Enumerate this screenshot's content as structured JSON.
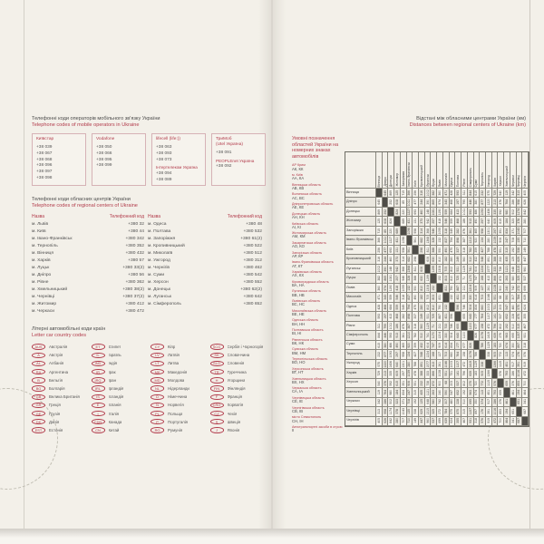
{
  "accent": "#b23b4b",
  "paper": "#f3f0e9",
  "left_page": {
    "mobile_section": {
      "title_uk": "Телефонні коди операторів мобільного зв'язку України",
      "title_en": "Telephone codes of mobile operators in Ukraine",
      "operators": [
        {
          "name": "Київстар",
          "lines": [
            "+38 039",
            "+38 067",
            "+38 068",
            "+38 096",
            "+38 097",
            "+38 098"
          ]
        },
        {
          "name": "Vodafone",
          "lines": [
            "+38 050",
            "+38 066",
            "+38 095",
            "+38 099"
          ]
        },
        {
          "name": "lifecell (life:))",
          "lines": [
            "+38 063",
            "+38 093",
            "+38 073",
            "Інтертелеком Україна",
            "+38 094",
            "+38 089"
          ]
        },
        {
          "name": "ТриМоб\n(Utel Україна)",
          "lines": [
            "+38 091",
            "PEOPLEnet Україна",
            "+38 092"
          ]
        }
      ]
    },
    "regional_section": {
      "title_uk": "Телефонні коди обласних центрів України",
      "title_en": "Telephone codes of regional centers of Ukraine",
      "headers": [
        "Назва",
        "Телефонний код",
        "Назва",
        "Телефонний код"
      ],
      "left": [
        [
          "м. Львів",
          "+380 32"
        ],
        [
          "м. Київ",
          "+380 44"
        ],
        [
          "м. Івано-Франківськ",
          "+380 342"
        ],
        [
          "м. Тернопіль",
          "+380 352"
        ],
        [
          "м. Вінниця",
          "+380 432"
        ],
        [
          "м. Харків",
          "+380 57"
        ],
        [
          "м. Луцьк",
          "+380 33(2)"
        ],
        [
          "м. Дніпро",
          "+380 56"
        ],
        [
          "м. Рівне",
          "+380 362"
        ],
        [
          "м. Хмельницький",
          "+380 38(2)"
        ],
        [
          "м. Чернівці",
          "+380 37(2)"
        ],
        [
          "м. Житомир",
          "+380 412"
        ],
        [
          "м. Черкаси",
          "+380 472"
        ]
      ],
      "right": [
        [
          "м. Одеса",
          "+380 48"
        ],
        [
          "м. Полтава",
          "+380 532"
        ],
        [
          "м. Запоріжжя",
          "+380 61(2)"
        ],
        [
          "м. Кропивницький",
          "+380 522"
        ],
        [
          "м. Миколаїв",
          "+380 512"
        ],
        [
          "м. Ужгород",
          "+380 312"
        ],
        [
          "м. Чернігів",
          "+380 462"
        ],
        [
          "м. Суми",
          "+380 542"
        ],
        [
          "м. Херсон",
          "+380 552"
        ],
        [
          "м. Донецьк",
          "+380 62(2)"
        ],
        [
          "м. Луганськ",
          "+380 642"
        ],
        [
          "м. Сімферополь",
          "+380 652"
        ]
      ]
    },
    "country_section": {
      "title_uk": "Літерні автомобільні коди країн",
      "title_en": "Letter car country codes",
      "columns": [
        [
          [
            "AUS",
            "Австралія"
          ],
          [
            "A",
            "Австрія"
          ],
          [
            "AL",
            "Албанія"
          ],
          [
            "RA",
            "Аргентина"
          ],
          [
            "B",
            "Бельгія"
          ],
          [
            "BG",
            "Болгарія"
          ],
          [
            "GB",
            "Велика Британія"
          ],
          [
            "GR",
            "Греція"
          ],
          [
            "GE",
            "Грузія"
          ],
          [
            "DK",
            "Данія"
          ],
          [
            "EST",
            "Естонія"
          ]
        ],
        [
          [
            "ET",
            "Єгипет"
          ],
          [
            "IL",
            "Ізраїль"
          ],
          [
            "IND",
            "Індія"
          ],
          [
            "IR",
            "Ірак"
          ],
          [
            "IRQ",
            "Іран"
          ],
          [
            "IRL",
            "Ірландія"
          ],
          [
            "IS",
            "Ісландія"
          ],
          [
            "E",
            "Іспанія"
          ],
          [
            "I",
            "Італія"
          ],
          [
            "CDN",
            "Канада"
          ],
          [
            "CN",
            "Китай"
          ]
        ],
        [
          [
            "CY",
            "Кіпр"
          ],
          [
            "LV",
            "Латвія"
          ],
          [
            "LT",
            "Литва"
          ],
          [
            "MK",
            "Македонія"
          ],
          [
            "MD",
            "Молдова"
          ],
          [
            "NL",
            "Нідерланди"
          ],
          [
            "D",
            "Німеччина"
          ],
          [
            "N",
            "Норвегія"
          ],
          [
            "PL",
            "Польща"
          ],
          [
            "P",
            "Португалія"
          ],
          [
            "RO",
            "Румунія"
          ]
        ],
        [
          [
            "SCG",
            "Сербія і Чорногорія"
          ],
          [
            "SK",
            "Словаччина"
          ],
          [
            "SLO",
            "Словенія"
          ],
          [
            "TR",
            "Туреччина"
          ],
          [
            "H",
            "Угорщина"
          ],
          [
            "FIN",
            "Фінляндія"
          ],
          [
            "F",
            "Франція"
          ],
          [
            "CRO",
            "Хорватія"
          ],
          [
            "CZ",
            "Чехія"
          ],
          [
            "S",
            "Швеція"
          ],
          [
            "J",
            "Японія"
          ]
        ]
      ]
    }
  },
  "right_page": {
    "title_uk": "Відстані між обласними центрами України (км)",
    "title_en": "Distances between regional centers of Ukraine (km)",
    "legend": {
      "title": "Умовні позначення областей України на номерних знаках автомобілів",
      "entries": [
        [
          "АР Крим",
          "АК, КК"
        ],
        [
          "м. Київ",
          "АА, КА"
        ],
        [
          "Вінницька область",
          "АВ, КВ"
        ],
        [
          "Волинська область",
          "АС, ВС"
        ],
        [
          "Дніпропетровська область",
          "АЕ, КЕ"
        ],
        [
          "Донецька область",
          "АН, КН"
        ],
        [
          "Київська область",
          "АІ, КІ"
        ],
        [
          "Житомирська область",
          "АМ, КМ"
        ],
        [
          "Закарпатська область",
          "АО, КО"
        ],
        [
          "Запорізька область",
          "АР, КР"
        ],
        [
          "Івано-Франківська область",
          "АТ, КТ"
        ],
        [
          "Харківська область",
          "АХ, КХ"
        ],
        [
          "Кіровоградська область",
          "ВА, НА"
        ],
        [
          "Луганська область",
          "ВВ, НВ"
        ],
        [
          "Львівська область",
          "ВС, НС"
        ],
        [
          "Миколаївська область",
          "ВЕ, НЕ"
        ],
        [
          "Одеська область",
          "ВН, НН"
        ],
        [
          "Полтавська область",
          "ВІ, НІ"
        ],
        [
          "Рівненська область",
          "ВК, НК"
        ],
        [
          "Сумська область",
          "ВМ, НМ"
        ],
        [
          "Тернопільська область",
          "ВО, НО"
        ],
        [
          "Херсонська область",
          "ВТ, НТ"
        ],
        [
          "Хмельницька область",
          "ВХ, НХ"
        ],
        [
          "Черкаська область",
          "СА, ІА"
        ],
        [
          "Чернівецька область",
          "СЕ, ІЕ"
        ],
        [
          "Чернігівська область",
          "СВ, ІВ"
        ],
        [
          "місто Севастополь",
          "СН, ІН"
        ],
        [
          "Автотранспортні засоби в строю",
          "ІІ"
        ]
      ]
    },
    "chart_data": {
      "type": "table",
      "title": "Відстані між обласними центрами України (км)",
      "cities": [
        "Вінниця",
        "Дніпро",
        "Донецьк",
        "Житомир",
        "Запоріжжя",
        "Івано-Франківськ",
        "Київ",
        "Кропивницький",
        "Луганськ",
        "Луцьк",
        "Львів",
        "Миколаїв",
        "Одеса",
        "Полтава",
        "Рівне",
        "Сімферополь",
        "Суми",
        "Тернопіль",
        "Ужгород",
        "Харків",
        "Херсон",
        "Хмельницький",
        "Черкаси",
        "Чернівці",
        "Чернігів"
      ],
      "matrix": [
        [
          0,
          645,
          869,
          125,
          715,
          366,
          256,
          316,
          1002,
          382,
          360,
          471,
          428,
          593,
          311,
          844,
          615,
          232,
          575,
          729,
          540,
          119,
          342,
          313,
          405
        ],
        [
          645,
          0,
          252,
          608,
          85,
          1011,
          477,
          244,
          390,
          865,
          974,
          343,
          468,
          197,
          795,
          446,
          380,
          877,
          1220,
          213,
          376,
          764,
          286,
          958,
          626
        ],
        [
          869,
          252,
          0,
          824,
          220,
          1227,
          693,
          460,
          148,
          1081,
          1190,
          559,
          684,
          413,
          1011,
          593,
          486,
          1093,
          1436,
          335,
          592,
          980,
          502,
          1174,
          842
        ],
        [
          125,
          608,
          824,
          0,
          689,
          431,
          131,
          373,
          942,
          257,
          418,
          546,
          559,
          468,
          186,
          913,
          490,
          297,
          640,
          609,
          615,
          184,
          323,
          378,
          280
        ],
        [
          715,
          85,
          220,
          689,
          0,
          1096,
          558,
          314,
          368,
          946,
          1055,
          318,
          549,
          282,
          876,
          361,
          465,
          958,
          1301,
          297,
          351,
          834,
          371,
          1043,
          707
        ],
        [
          366,
          1011,
          1227,
          431,
          1096,
          0,
          561,
          682,
          1368,
          328,
          132,
          837,
          794,
          898,
          387,
          1210,
          920,
          134,
          280,
          1039,
          906,
          247,
          708,
          135,
          710
        ],
        [
          256,
          477,
          693,
          131,
          558,
          561,
          0,
          298,
          811,
          388,
          550,
          490,
          475,
          337,
          318,
          782,
          359,
          427,
          788,
          478,
          551,
          315,
          192,
          538,
          149
        ],
        [
          316,
          244,
          460,
          373,
          314,
          682,
          298,
          0,
          606,
          630,
          810,
          182,
          280,
          249,
          560,
          510,
          432,
          548,
          891,
          388,
          232,
          435,
          125,
          629,
          447
        ],
        [
          1002,
          390,
          148,
          942,
          368,
          1368,
          811,
          606,
          0,
          1199,
          1308,
          705,
          802,
          531,
          1129,
          741,
          604,
          1234,
          1577,
          333,
          738,
          1121,
          648,
          1315,
          960
        ],
        [
          382,
          865,
          1081,
          257,
          946,
          328,
          388,
          630,
          1199,
          0,
          152,
          803,
          810,
          725,
          71,
          1170,
          747,
          168,
          413,
          866,
          872,
          263,
          580,
          325,
          537
        ],
        [
          360,
          974,
          1190,
          418,
          1055,
          132,
          550,
          810,
          1308,
          152,
          0,
          831,
          790,
          887,
          211,
          1204,
          909,
          127,
          261,
          1028,
          900,
          240,
          742,
          272,
          699
        ],
        [
          471,
          343,
          559,
          546,
          318,
          837,
          490,
          182,
          705,
          803,
          831,
          0,
          132,
          431,
          733,
          330,
          614,
          703,
          1046,
          551,
          68,
          590,
          307,
          784,
          639
        ],
        [
          428,
          468,
          684,
          559,
          549,
          794,
          475,
          280,
          802,
          810,
          790,
          132,
          0,
          596,
          746,
          504,
          834,
          660,
          1003,
          731,
          203,
          547,
          480,
          575,
          624
        ],
        [
          593,
          197,
          413,
          468,
          282,
          898,
          337,
          249,
          531,
          725,
          887,
          431,
          596,
          0,
          655,
          643,
          177,
          764,
          1107,
          141,
          537,
          652,
          228,
          875,
          355
        ],
        [
          311,
          795,
          1011,
          186,
          876,
          387,
          318,
          560,
          1129,
          71,
          211,
          733,
          746,
          655,
          0,
          1100,
          677,
          158,
          472,
          796,
          802,
          192,
          510,
          315,
          467
        ],
        [
          844,
          446,
          593,
          913,
          361,
          1210,
          782,
          510,
          741,
          1170,
          1204,
          330,
          504,
          643,
          1100,
          0,
          826,
          1076,
          1419,
          639,
          275,
          963,
          695,
          1157,
          931
        ],
        [
          615,
          380,
          486,
          490,
          465,
          920,
          359,
          432,
          604,
          747,
          909,
          614,
          834,
          177,
          677,
          826,
          0,
          786,
          1129,
          183,
          720,
          674,
          350,
          897,
          318
        ],
        [
          232,
          877,
          1093,
          297,
          958,
          134,
          427,
          548,
          1234,
          168,
          127,
          703,
          660,
          764,
          158,
          1076,
          786,
          0,
          338,
          905,
          772,
          113,
          574,
          176,
          576
        ],
        [
          575,
          1220,
          1436,
          640,
          1301,
          280,
          788,
          891,
          1577,
          413,
          261,
          1046,
          1003,
          1107,
          472,
          1419,
          1129,
          338,
          0,
          1266,
          1115,
          451,
          917,
          391,
          919
        ],
        [
          729,
          213,
          335,
          609,
          297,
          1039,
          478,
          388,
          333,
          866,
          1028,
          551,
          731,
          141,
          796,
          639,
          183,
          905,
          1266,
          0,
          576,
          793,
          286,
          1016,
          472
        ],
        [
          540,
          376,
          592,
          615,
          351,
          906,
          551,
          232,
          738,
          872,
          900,
          68,
          203,
          537,
          802,
          275,
          720,
          772,
          1115,
          576,
          0,
          659,
          376,
          853,
          700
        ],
        [
          119,
          764,
          980,
          184,
          834,
          247,
          315,
          435,
          1121,
          263,
          240,
          590,
          547,
          652,
          192,
          963,
          674,
          113,
          451,
          793,
          659,
          0,
          461,
          194,
          464
        ],
        [
          342,
          286,
          502,
          323,
          371,
          708,
          192,
          125,
          648,
          580,
          742,
          307,
          480,
          228,
          510,
          695,
          350,
          574,
          917,
          286,
          376,
          461,
          0,
          651,
          341
        ],
        [
          313,
          958,
          1174,
          378,
          1043,
          135,
          538,
          629,
          1315,
          325,
          272,
          784,
          575,
          875,
          315,
          1157,
          897,
          176,
          391,
          1016,
          853,
          194,
          651,
          0,
          687
        ],
        [
          405,
          626,
          842,
          280,
          707,
          710,
          149,
          447,
          960,
          537,
          699,
          639,
          624,
          355,
          467,
          931,
          318,
          576,
          919,
          472,
          700,
          464,
          341,
          687,
          0
        ]
      ]
    }
  }
}
